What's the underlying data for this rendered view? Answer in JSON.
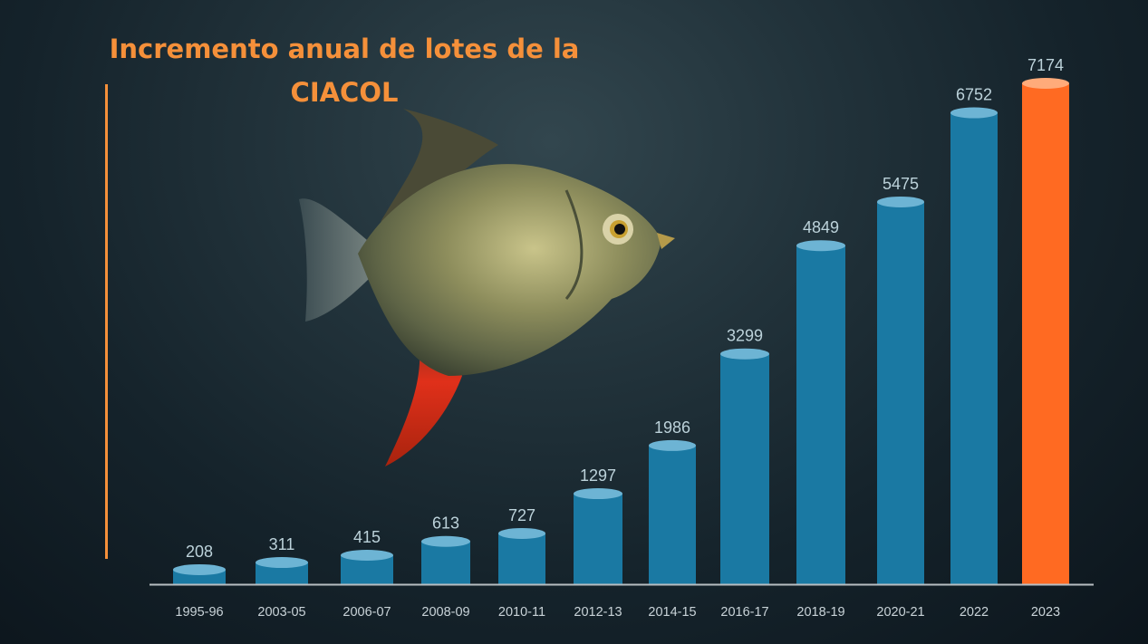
{
  "title_line1": "Incremento anual de lotes de  la",
  "title_line2": "CIACOL",
  "colors": {
    "bar": "#1a79a3",
    "bar_top": "#6db4d4",
    "bar_highlight": "#ff6a22",
    "bar_highlight_top": "#ffab7a",
    "value_label": "#bcd2da",
    "tick_label": "#c9d3d8",
    "title": "#f5903a"
  },
  "chart_data": {
    "type": "bar",
    "categories": [
      "1995-96",
      "2003-05",
      "2006-07",
      "2008-09",
      "2010-11",
      "2012-13",
      "2014-15",
      "2016-17",
      "2018-19",
      "2020-21",
      "2022",
      "2023"
    ],
    "values": [
      208,
      311,
      415,
      613,
      727,
      1297,
      1986,
      3299,
      4849,
      5475,
      6752,
      7174
    ],
    "value_labels": [
      "208",
      "311",
      "415",
      "613",
      "727",
      "1297",
      "1986",
      "3299",
      "4849",
      "5475",
      "6752",
      "7174"
    ],
    "highlight_index": 11,
    "title": "Incremento anual de lotes de  la CIACOL",
    "xlabel": "",
    "ylabel": "",
    "grid": false
  }
}
